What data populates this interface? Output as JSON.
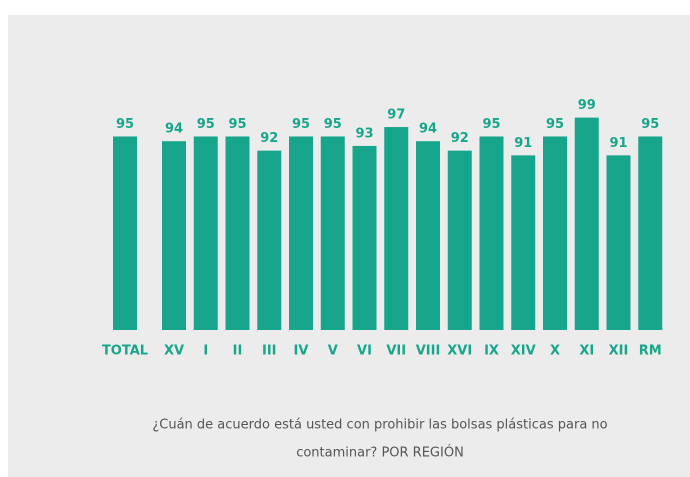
{
  "chart_data": {
    "type": "bar",
    "categories": [
      "TOTAL",
      "XV",
      "I",
      "II",
      "III",
      "IV",
      "V",
      "VI",
      "VII",
      "VIII",
      "XVI",
      "IX",
      "XIV",
      "X",
      "XI",
      "XII",
      "RM"
    ],
    "values": [
      95,
      94,
      95,
      95,
      92,
      95,
      95,
      93,
      97,
      94,
      92,
      95,
      91,
      95,
      99,
      91,
      95
    ],
    "color": "#17a68b",
    "ylim": [
      54,
      100
    ],
    "caption": [
      "¿Cuán de acuerdo está usted con prohibir las bolsas plásticas para no",
      "contaminar? POR REGIÓN"
    ]
  }
}
